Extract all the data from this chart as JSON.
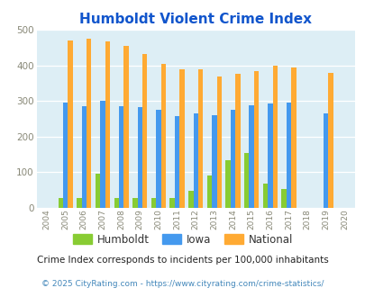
{
  "title": "Humboldt Violent Crime Index",
  "years": [
    2004,
    2005,
    2006,
    2007,
    2008,
    2009,
    2010,
    2011,
    2012,
    2013,
    2014,
    2015,
    2016,
    2017,
    2018,
    2019,
    2020
  ],
  "humboldt": [
    0,
    27,
    27,
    95,
    27,
    27,
    27,
    27,
    47,
    90,
    133,
    155,
    68,
    52,
    0,
    0,
    0
  ],
  "iowa": [
    0,
    295,
    285,
    300,
    285,
    282,
    275,
    257,
    265,
    260,
    274,
    289,
    292,
    295,
    0,
    265,
    0
  ],
  "national": [
    0,
    469,
    474,
    467,
    455,
    432,
    405,
    388,
    388,
    368,
    376,
    384,
    399,
    394,
    0,
    379,
    0
  ],
  "humboldt_color": "#88cc33",
  "iowa_color": "#4499ee",
  "national_color": "#ffaa33",
  "plot_bg": "#ddeef5",
  "title_color": "#1155cc",
  "subtitle": "Crime Index corresponds to incidents per 100,000 inhabitants",
  "footer": "© 2025 CityRating.com - https://www.cityrating.com/crime-statistics/",
  "ylim": [
    0,
    500
  ],
  "yticks": [
    0,
    100,
    200,
    300,
    400,
    500
  ],
  "bar_width": 0.26,
  "legend_labels": [
    "Humboldt",
    "Iowa",
    "National"
  ]
}
